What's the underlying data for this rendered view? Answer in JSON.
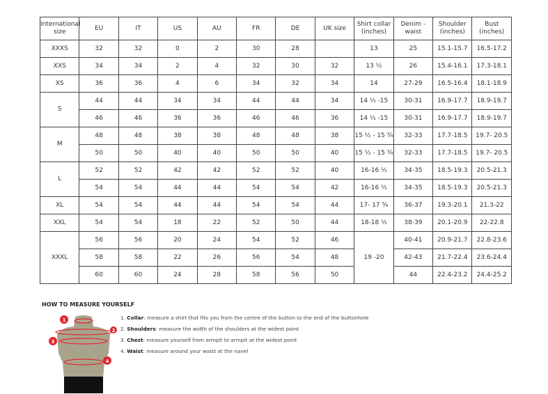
{
  "headers": [
    "International size",
    "EU",
    "IT",
    "US",
    "AU",
    "FR",
    "DE",
    "UK size",
    "Shirt collar (inches)",
    "Denim - waist",
    "Shoulder (inches)",
    "Bust (inches)"
  ],
  "groups": [
    {
      "size": "XXXS",
      "rows": [
        [
          "32",
          "32",
          "0",
          "2",
          "30",
          "28",
          "",
          "13",
          "25",
          "15.1-15.7",
          "16.5-17.2"
        ]
      ]
    },
    {
      "size": "XXS",
      "rows": [
        [
          "34",
          "34",
          "2",
          "4",
          "32",
          "30",
          "32",
          "13 ½",
          "26",
          "15.4-16.1",
          "17.3-18.1"
        ]
      ]
    },
    {
      "size": "XS",
      "rows": [
        [
          "36",
          "36",
          "4",
          "6",
          "34",
          "32",
          "34",
          "14",
          "27-29",
          "16.5-16.4",
          "18.1-18.9"
        ]
      ]
    },
    {
      "size": "S",
      "rows": [
        [
          "44",
          "44",
          "34",
          "34",
          "44",
          "44",
          "34",
          "14 ½ -15",
          "30-31",
          "16.9-17.7",
          "18.9-19.7"
        ],
        [
          "46",
          "46",
          "36",
          "36",
          "46",
          "46",
          "36",
          "14 ½ -15",
          "30-31",
          "16.9-17.7",
          "18.9-19.7"
        ]
      ]
    },
    {
      "size": "M",
      "rows": [
        [
          "48",
          "48",
          "38",
          "38",
          "48",
          "48",
          "38",
          "15 ½ - 15 ¾",
          "32-33",
          "17.7-18.5",
          "19.7- 20.5"
        ],
        [
          "50",
          "50",
          "40",
          "40",
          "50",
          "50",
          "40",
          "15 ½ - 15 ¾",
          "32-33",
          "17.7-18.5",
          "19.7- 20.5"
        ]
      ]
    },
    {
      "size": "L",
      "rows": [
        [
          "52",
          "52",
          "42",
          "42",
          "52",
          "52",
          "40",
          "16-16 ½",
          "34-35",
          "18.5-19.3",
          "20.5-21.3"
        ],
        [
          "54",
          "54",
          "44",
          "44",
          "54",
          "54",
          "42",
          "16-16 ½",
          "34-35",
          "18.5-19.3",
          "20.5-21.3"
        ]
      ]
    },
    {
      "size": "XL",
      "rows": [
        [
          "54",
          "54",
          "44",
          "44",
          "54",
          "54",
          "44",
          "17- 17 ¾",
          "36-37",
          "19.3-20.1",
          "21.3-22"
        ]
      ]
    },
    {
      "size": "XXL",
      "rows": [
        [
          "54",
          "54",
          "18",
          "22",
          "52",
          "50",
          "44",
          "18-18 ½",
          "38-39",
          "20.1-20.9",
          "22-22.8"
        ]
      ]
    },
    {
      "size": "XXXL",
      "collar_merged": "19 -20",
      "rows": [
        [
          "56",
          "56",
          "20",
          "24",
          "54",
          "52",
          "46",
          null,
          "40-41",
          "20.9-21.7",
          "22.8-23.6"
        ],
        [
          "58",
          "58",
          "22",
          "26",
          "56",
          "54",
          "48",
          null,
          "42-43",
          "21.7-22.4",
          "23.6-24.4"
        ],
        [
          "60",
          "60",
          "24",
          "28",
          "58",
          "56",
          "50",
          null,
          "44",
          "22.4-23.2",
          "24.4-25.2"
        ]
      ]
    }
  ],
  "howto": {
    "title": "HOW TO MEASURE YOURSELF",
    "steps": [
      {
        "num": "1.",
        "term": "Collar",
        "text": ": measure a shirt that fits you from the centre of the button to the end of the buttonhole"
      },
      {
        "num": "2.",
        "term": "Shoulders",
        "text": ": measure the width of the shoulders at the widest point"
      },
      {
        "num": "3.",
        "term": "Chest",
        "text": ": measure yourself from armpit to armpit at the widest point"
      },
      {
        "num": "4.",
        "term": "Waist",
        "text": ": measure around your waist at the navel"
      }
    ],
    "markers": [
      "1",
      "2",
      "3",
      "4"
    ],
    "accent": "#e3262f"
  }
}
